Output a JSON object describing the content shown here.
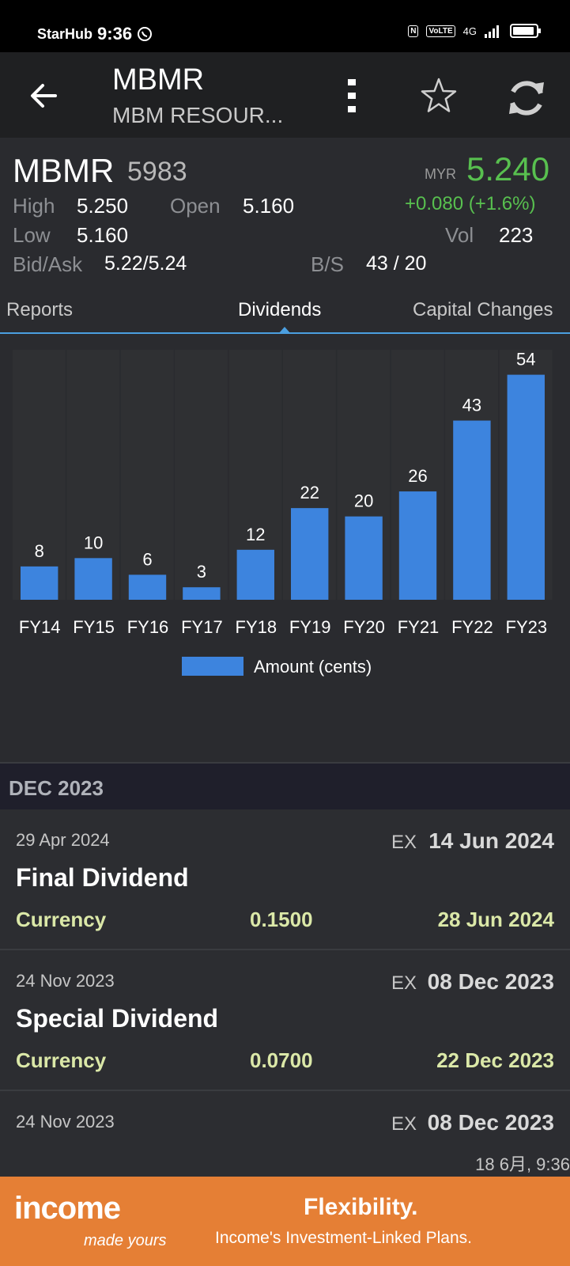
{
  "status": {
    "carrier": "StarHub",
    "time": "9:36",
    "net": "4G",
    "volte": "VoLTE",
    "nfc": "N"
  },
  "header": {
    "title": "MBMR",
    "subtitle": "MBM RESOUR..."
  },
  "quote": {
    "symbol": "MBMR",
    "code": "5983",
    "currency": "MYR",
    "price": "5.240",
    "change": "+0.080 (+1.6%)",
    "high_label": "High",
    "high": "5.250",
    "open_label": "Open",
    "open": "5.160",
    "low_label": "Low",
    "low": "5.160",
    "vol_label": "Vol",
    "vol": "223",
    "bidask_label": "Bid/Ask",
    "bidask": "5.22/5.24",
    "bs_label": "B/S",
    "bs": "43 / 20"
  },
  "tabs": {
    "reports": "Reports",
    "dividends": "Dividends",
    "capital": "Capital Changes"
  },
  "chart_data": {
    "type": "bar",
    "categories": [
      "FY14",
      "FY15",
      "FY16",
      "FY17",
      "FY18",
      "FY19",
      "FY20",
      "FY21",
      "FY22",
      "FY23"
    ],
    "values": [
      8,
      10,
      6,
      3,
      12,
      22,
      20,
      26,
      43,
      54
    ],
    "legend": "Amount (cents)",
    "ylim": [
      0,
      60
    ],
    "color": "#3d84de"
  },
  "section": {
    "label": "DEC 2023"
  },
  "entries": [
    {
      "date": "29 Apr 2024",
      "ex_label": "EX",
      "ex_date": "14 Jun 2024",
      "title": "Final Dividend",
      "currency": "Currency",
      "amount": "0.1500",
      "pay_date": "28 Jun 2024"
    },
    {
      "date": "24 Nov 2023",
      "ex_label": "EX",
      "ex_date": "08 Dec 2023",
      "title": "Special Dividend",
      "currency": "Currency",
      "amount": "0.0700",
      "pay_date": "22 Dec 2023"
    }
  ],
  "partial": {
    "date": "24 Nov 2023",
    "ex_label": "EX",
    "ex_date": "08 Dec 2023",
    "timestamp": "18 6月, 9:36"
  },
  "ad": {
    "brand": "income",
    "tagline": "made yours",
    "headline": "Flexibility.",
    "sub": "Income's Investment-Linked Plans."
  }
}
